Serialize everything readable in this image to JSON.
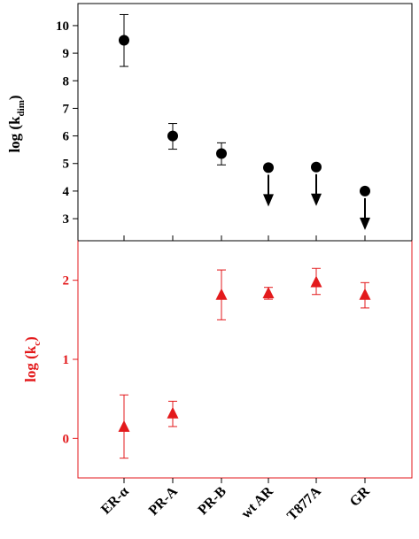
{
  "chart_data": [
    {
      "type": "scatter",
      "panel": "top",
      "categories": [
        "ER-α",
        "PR-A",
        "PR-B",
        "wt AR",
        "T877A",
        "GR"
      ],
      "ylabel": {
        "main": "log (k",
        "sub": "dim",
        "end": ")"
      },
      "ylim": [
        2.2,
        10.8
      ],
      "yticks": [
        "3",
        "4",
        "5",
        "6",
        "7",
        "8",
        "9",
        "10"
      ],
      "marker": "circle",
      "color": "#000000",
      "series": [
        {
          "values": [
            9.47,
            6.0,
            5.36,
            4.85,
            4.87,
            4.0
          ],
          "err_low": [
            8.52,
            5.52,
            4.95,
            null,
            null,
            null
          ],
          "err_high": [
            10.4,
            6.45,
            5.75,
            null,
            null,
            null
          ],
          "upper_limit": [
            false,
            false,
            false,
            true,
            true,
            true
          ]
        }
      ]
    },
    {
      "type": "scatter",
      "panel": "bottom",
      "categories": [
        "ER-α",
        "PR-A",
        "PR-B",
        "wt AR",
        "T877A",
        "GR"
      ],
      "ylabel": {
        "main": "log (k",
        "sub": "c",
        "end": ")"
      },
      "ylim": [
        -0.5,
        2.5
      ],
      "yticks": [
        "0",
        "1",
        "2"
      ],
      "marker": "triangle",
      "color": "#e31a1c",
      "series": [
        {
          "values": [
            0.15,
            0.32,
            1.82,
            1.84,
            1.98,
            1.82
          ],
          "err_low": [
            -0.25,
            0.15,
            1.5,
            1.76,
            1.82,
            1.65
          ],
          "err_high": [
            0.55,
            0.47,
            2.13,
            1.91,
            2.15,
            1.97
          ]
        }
      ]
    }
  ]
}
